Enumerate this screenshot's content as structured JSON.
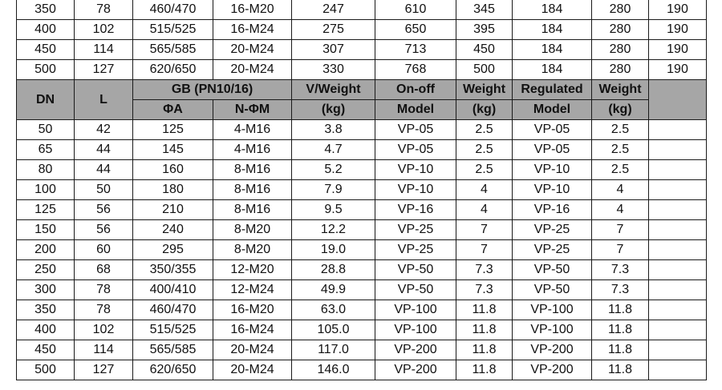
{
  "top_rows": [
    [
      "350",
      "78",
      "460/470",
      "16-M20",
      "247",
      "610",
      "345",
      "184",
      "280",
      "190"
    ],
    [
      "400",
      "102",
      "515/525",
      "16-M24",
      "275",
      "650",
      "395",
      "184",
      "280",
      "190"
    ],
    [
      "450",
      "114",
      "565/585",
      "20-M24",
      "307",
      "713",
      "450",
      "184",
      "280",
      "190"
    ],
    [
      "500",
      "127",
      "620/650",
      "20-M24",
      "330",
      "768",
      "500",
      "184",
      "280",
      "190"
    ]
  ],
  "header": {
    "dn": "DN",
    "l": "L",
    "gb": "GB (PN10/16)",
    "phi_a": "ΦA",
    "n_phi_m": "N-ΦM",
    "v_weight": "V/Weight",
    "v_weight_unit": "(kg)",
    "onoff": "On-off",
    "onoff_model": "Model",
    "weight1": "Weight",
    "weight1_unit": "(kg)",
    "regulated": "Regulated",
    "regulated_model": "Model",
    "weight2": "Weight",
    "weight2_unit": "(kg)"
  },
  "header_color": "#a6a6a6",
  "rows": [
    [
      "50",
      "42",
      "125",
      "4-M16",
      "3.8",
      "VP-05",
      "2.5",
      "VP-05",
      "2.5",
      ""
    ],
    [
      "65",
      "44",
      "145",
      "4-M16",
      "4.7",
      "VP-05",
      "2.5",
      "VP-05",
      "2.5",
      ""
    ],
    [
      "80",
      "44",
      "160",
      "8-M16",
      "5.2",
      "VP-10",
      "2.5",
      "VP-10",
      "2.5",
      ""
    ],
    [
      "100",
      "50",
      "180",
      "8-M16",
      "7.9",
      "VP-10",
      "4",
      "VP-10",
      "4",
      ""
    ],
    [
      "125",
      "56",
      "210",
      "8-M16",
      "9.5",
      "VP-16",
      "4",
      "VP-16",
      "4",
      ""
    ],
    [
      "150",
      "56",
      "240",
      "8-M20",
      "12.2",
      "VP-25",
      "7",
      "VP-25",
      "7",
      ""
    ],
    [
      "200",
      "60",
      "295",
      "8-M20",
      "19.0",
      "VP-25",
      "7",
      "VP-25",
      "7",
      ""
    ],
    [
      "250",
      "68",
      "350/355",
      "12-M20",
      "28.8",
      "VP-50",
      "7.3",
      "VP-50",
      "7.3",
      ""
    ],
    [
      "300",
      "78",
      "400/410",
      "12-M24",
      "49.9",
      "VP-50",
      "7.3",
      "VP-50",
      "7.3",
      ""
    ],
    [
      "350",
      "78",
      "460/470",
      "16-M20",
      "63.0",
      "VP-100",
      "11.8",
      "VP-100",
      "11.8",
      ""
    ],
    [
      "400",
      "102",
      "515/525",
      "16-M24",
      "105.0",
      "VP-100",
      "11.8",
      "VP-100",
      "11.8",
      ""
    ],
    [
      "450",
      "114",
      "565/585",
      "20-M24",
      "117.0",
      "VP-200",
      "11.8",
      "VP-200",
      "11.8",
      ""
    ],
    [
      "500",
      "127",
      "620/650",
      "20-M24",
      "146.0",
      "VP-200",
      "11.8",
      "VP-200",
      "11.8",
      ""
    ]
  ]
}
